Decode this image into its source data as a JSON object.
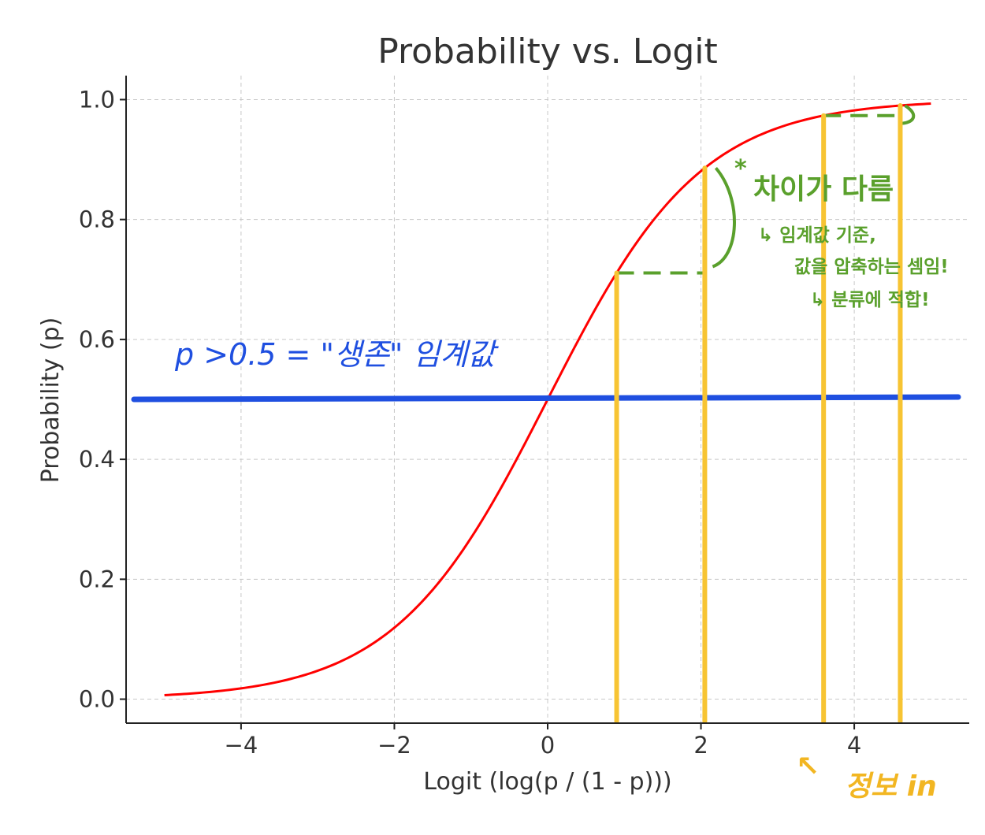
{
  "chart_data": {
    "type": "line",
    "title": "Probability vs. Logit",
    "xlabel": "Logit (log(p / (1 - p)))",
    "ylabel": "Probability (p)",
    "xlim": [
      -5.5,
      5.5
    ],
    "ylim": [
      -0.04,
      1.04
    ],
    "xticks": [
      -4,
      -2,
      0,
      2,
      4
    ],
    "xtick_labels": [
      "−4",
      "−2",
      "0",
      "2",
      "4"
    ],
    "yticks": [
      0.0,
      0.2,
      0.4,
      0.6,
      0.8,
      1.0
    ],
    "ytick_labels": [
      "0.0",
      "0.2",
      "0.4",
      "0.6",
      "0.8",
      "1.0"
    ],
    "grid": true,
    "series": [
      {
        "function": "sigmoid",
        "x_range": [
          -5,
          5
        ],
        "color": "#ff0000"
      }
    ],
    "threshold_line": {
      "y": 0.5,
      "color": "#1f4fe0"
    },
    "vertical_markers": {
      "x": [
        0.9,
        2.05,
        3.6,
        4.6
      ],
      "color": "#f7c433"
    },
    "annotations": {
      "blue_note": "p >0.5 = \"생존\" 임계값",
      "green_star": "*",
      "green_line1": "차이가 다름",
      "green_line2": "↳ 임계값 기준,",
      "green_line3": "값을 압축하는 셈임!",
      "green_line4": "↳ 분류에 적합!",
      "yellow_arrow": "↖",
      "yellow_note": "정보 in"
    },
    "colors": {
      "green": "#5aa02c"
    }
  }
}
